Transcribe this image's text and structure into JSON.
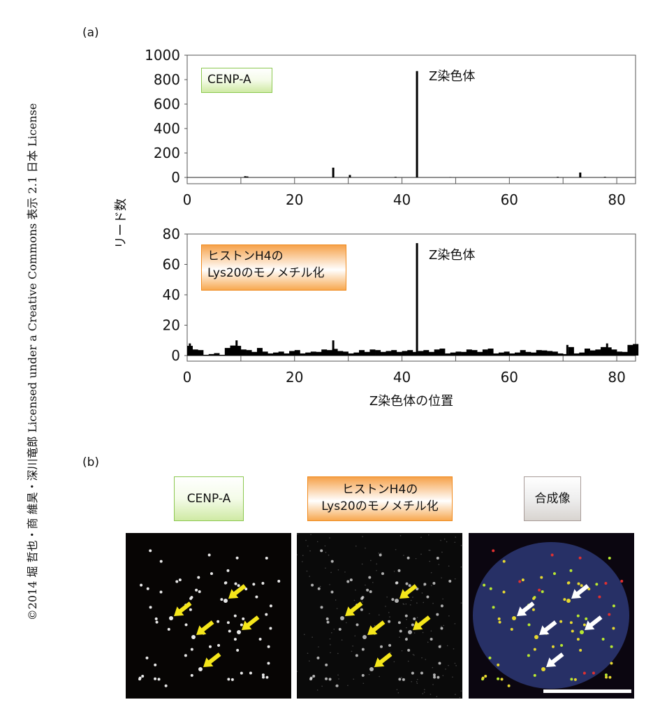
{
  "copyright": "©2014 堀 哲也・商 維昊・深川竜郎 Licensed under a Creative Commons 表示 2.1 日本 License",
  "panel_a_label": "(a)",
  "panel_b_label": "(b)",
  "chart_data": [
    {
      "type": "bar",
      "title": "CENP-A",
      "ylabel": "リード数",
      "xlabel": "",
      "xlim": [
        0,
        83.5
      ],
      "ylim": [
        0,
        1000
      ],
      "xticks": [
        0,
        20,
        40,
        60,
        80
      ],
      "yticks": [
        0,
        200,
        400,
        600,
        800,
        1000
      ],
      "annotation": "Z染色体",
      "points": [
        [
          10.8,
          10
        ],
        [
          11.2,
          8
        ],
        [
          27.2,
          80
        ],
        [
          30.3,
          20
        ],
        [
          38.8,
          5
        ],
        [
          42.8,
          870
        ],
        [
          49,
          3
        ],
        [
          69,
          5
        ],
        [
          73.2,
          40
        ],
        [
          77.8,
          5
        ]
      ],
      "color": "#000000"
    },
    {
      "type": "bar",
      "title": "ヒストンH4のLys20のモノメチル化",
      "title_lines": [
        "ヒストンH4の",
        "Lys20のモノメチル化"
      ],
      "ylabel": "リード数",
      "xlabel": "Z染色体の位置",
      "xlim": [
        0,
        83.5
      ],
      "ylim": [
        0,
        80
      ],
      "xticks": [
        0,
        20,
        40,
        60,
        80
      ],
      "yticks": [
        0,
        20,
        40,
        60,
        80
      ],
      "annotation": "Z染色体",
      "bin_width": 1,
      "background": [
        7,
        4,
        3,
        1,
        1,
        1,
        1,
        5,
        6,
        7,
        4,
        3,
        3,
        5,
        2,
        2,
        2,
        2,
        2,
        3,
        3,
        2,
        2,
        2,
        3,
        4,
        3,
        5,
        3,
        2,
        2,
        2,
        3,
        3,
        4,
        3,
        3,
        3,
        3,
        3,
        3,
        3,
        3,
        3,
        3,
        3,
        4,
        4,
        2,
        2,
        2,
        3,
        4,
        3,
        3,
        4,
        4,
        2,
        2,
        2,
        2,
        2,
        3,
        3,
        2,
        3,
        4,
        3,
        2,
        2,
        1,
        5,
        2,
        2,
        4,
        4,
        4,
        5,
        6,
        4,
        2,
        3,
        7,
        7
      ],
      "points": [
        [
          0.5,
          8
        ],
        [
          9.2,
          10
        ],
        [
          27.2,
          10
        ],
        [
          42.8,
          74
        ],
        [
          70.8,
          7
        ],
        [
          78.2,
          8
        ]
      ],
      "color": "#000000"
    }
  ],
  "images": {
    "labels": [
      "CENP-A",
      "ヒストンH4の\nLys20のモノメチル化",
      "合成像"
    ],
    "label_lines_middle": [
      "ヒストンH4の",
      "Lys20のモノメチル化"
    ],
    "arrow_color_gray": "#f5e61a",
    "arrow_color_merge": "#ffffff",
    "nucleus_color": "#2a3570"
  }
}
